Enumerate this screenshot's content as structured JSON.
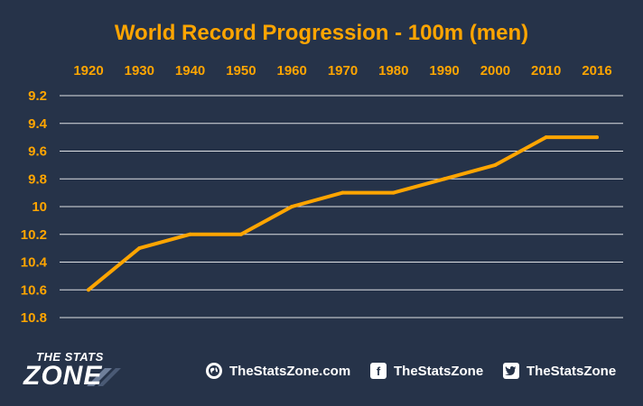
{
  "chart_data": {
    "type": "line",
    "title": "World Record Progression - 100m (men)",
    "xlabel": "",
    "ylabel": "",
    "x_ticks": [
      "1920",
      "1930",
      "1940",
      "1950",
      "1960",
      "1970",
      "1980",
      "1990",
      "2000",
      "2010",
      "2016"
    ],
    "y_ticks": [
      "9.2",
      "9.4",
      "9.6",
      "9.8",
      "10",
      "10.2",
      "10.4",
      "10.6",
      "10.8"
    ],
    "ylim": [
      9.2,
      10.8
    ],
    "y_inverted": true,
    "x_axis_position": "top",
    "grid": true,
    "series": [
      {
        "values": [
          10.6,
          10.3,
          10.2,
          10.2,
          10.0,
          9.9,
          9.9,
          9.8,
          9.7,
          9.5,
          9.5
        ]
      }
    ],
    "colors": {
      "line": "#FFA500",
      "text": "#FFA500",
      "grid": "#FFFFFF",
      "background": "#263349"
    }
  },
  "footer": {
    "logo_top": "THE STATS",
    "logo_bottom": "ZONE",
    "website": "TheStatsZone.com",
    "facebook": "TheStatsZone",
    "twitter": "TheStatsZone",
    "icons": [
      "globe-icon",
      "facebook-icon",
      "twitter-icon"
    ]
  }
}
